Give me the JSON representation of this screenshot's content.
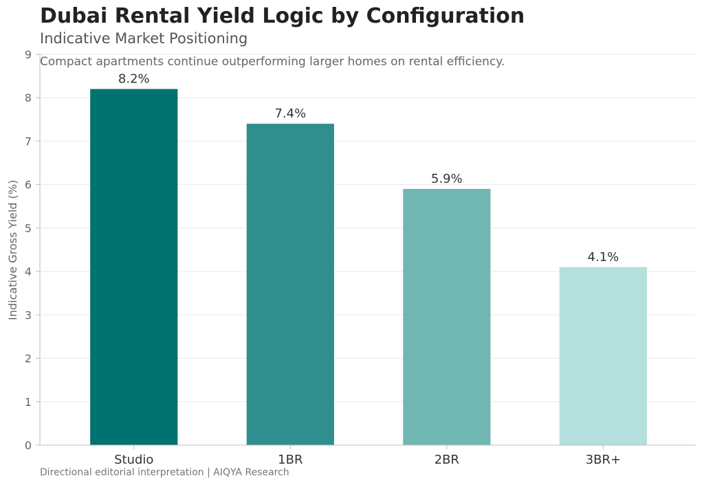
{
  "chart_data": {
    "type": "bar",
    "title": "Dubai Rental Yield Logic by Configuration",
    "subtitle": "Indicative Market Positioning",
    "annotation": "Compact apartments continue outperforming larger homes on rental efficiency.",
    "footnote": "Directional editorial interpretation | AIQYA Research",
    "xlabel": "",
    "ylabel": "Indicative Gross Yield (%)",
    "categories": [
      "Studio",
      "1BR",
      "2BR",
      "3BR+"
    ],
    "values": [
      8.2,
      7.4,
      5.9,
      4.1
    ],
    "value_labels": [
      "8.2%",
      "7.4%",
      "5.9%",
      "4.1%"
    ],
    "colors": [
      "#007370",
      "#2e8f8e",
      "#70b7b3",
      "#b3dfdc"
    ],
    "ylim": [
      0,
      9
    ],
    "yticks": [
      0,
      1,
      2,
      3,
      4,
      5,
      6,
      7,
      8,
      9
    ],
    "grid": "horizontal",
    "legend": "none"
  }
}
